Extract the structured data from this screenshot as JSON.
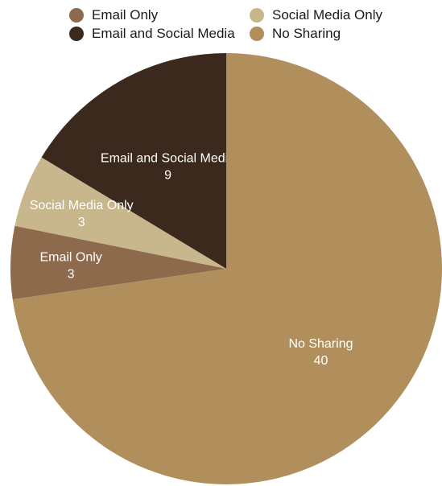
{
  "chart_data": {
    "type": "pie",
    "categories": [
      "Email Only",
      "Social Media Only",
      "Email and Social Media",
      "No Sharing"
    ],
    "values": [
      3,
      3,
      9,
      40
    ],
    "colors": [
      "#8c6a4b",
      "#c8b68c",
      "#3b291d",
      "#b08f5c"
    ],
    "legend_position": "top",
    "legend": [
      {
        "label": "Email Only",
        "color": "#8c6a4b"
      },
      {
        "label": "Social Media Only",
        "color": "#c8b68c"
      },
      {
        "label": "Email and Social Media",
        "color": "#3b291d"
      },
      {
        "label": "No Sharing",
        "color": "#b08f5c"
      }
    ]
  }
}
